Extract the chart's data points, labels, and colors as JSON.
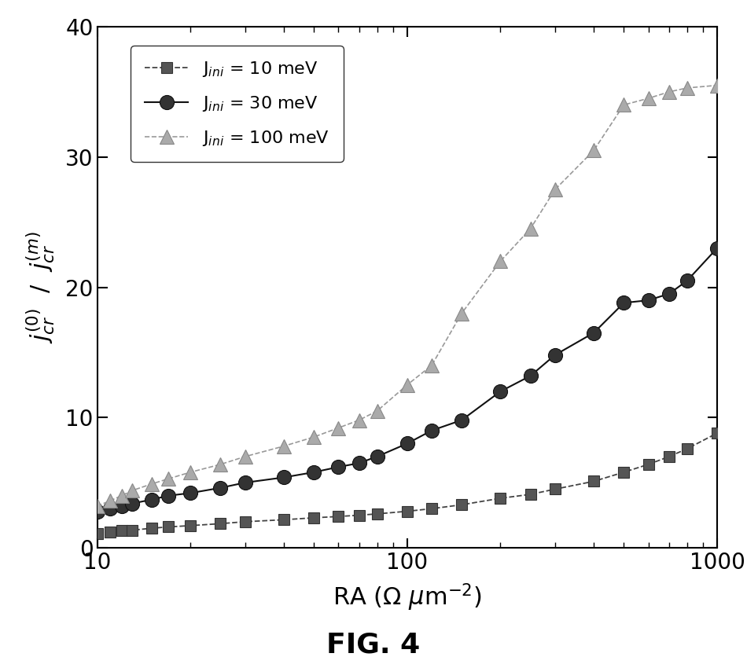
{
  "title": "FIG. 4",
  "xlabel": "RA ($\\Omega$ $\\mu$m$^{-2}$)",
  "ylabel_parts": [
    "$j$",
    "${(0)}$",
    "${cr}$",
    " / ",
    "$j$",
    "${(m)}$",
    "${cr}$"
  ],
  "xlim": [
    10,
    1000
  ],
  "ylim": [
    0,
    40
  ],
  "yticks": [
    0,
    10,
    20,
    30,
    40
  ],
  "series": [
    {
      "label": "J$_{\\mathit{ini}}$ = 10 meV",
      "color": "#555555",
      "linestyle": "--",
      "marker": "s",
      "markersize": 10,
      "linewidth": 1.2,
      "x": [
        10,
        11,
        12,
        13,
        15,
        17,
        20,
        25,
        30,
        40,
        50,
        60,
        70,
        80,
        100,
        120,
        150,
        200,
        250,
        300,
        400,
        500,
        600,
        700,
        800,
        1000
      ],
      "y": [
        1.1,
        1.2,
        1.3,
        1.35,
        1.5,
        1.6,
        1.7,
        1.85,
        2.0,
        2.15,
        2.3,
        2.4,
        2.5,
        2.6,
        2.8,
        3.0,
        3.3,
        3.8,
        4.1,
        4.5,
        5.1,
        5.8,
        6.4,
        7.0,
        7.6,
        8.8
      ]
    },
    {
      "label": "J$_{\\mathit{ini}}$ = 30 meV",
      "color": "#222222",
      "linestyle": "-",
      "marker": "o",
      "markersize": 12,
      "linewidth": 1.5,
      "x": [
        10,
        11,
        12,
        13,
        15,
        17,
        20,
        25,
        30,
        40,
        50,
        60,
        70,
        80,
        100,
        120,
        150,
        200,
        250,
        300,
        400,
        500,
        600,
        700,
        800,
        1000
      ],
      "y": [
        2.8,
        3.0,
        3.2,
        3.4,
        3.7,
        4.0,
        4.2,
        4.6,
        5.0,
        5.4,
        5.8,
        6.2,
        6.5,
        7.0,
        8.0,
        9.0,
        9.8,
        12.0,
        13.2,
        14.8,
        16.5,
        18.8,
        19.0,
        19.5,
        20.5,
        23.0
      ]
    },
    {
      "label": "J$_{\\mathit{ini}}$ = 100 meV",
      "color": "#aaaaaa",
      "linestyle": "--",
      "marker": "^",
      "markersize": 12,
      "linewidth": 1.2,
      "x": [
        10,
        11,
        12,
        13,
        15,
        17,
        20,
        25,
        30,
        40,
        50,
        60,
        70,
        80,
        100,
        120,
        150,
        200,
        250,
        300,
        400,
        500,
        600,
        700,
        800,
        1000
      ],
      "y": [
        3.2,
        3.6,
        4.0,
        4.4,
        4.9,
        5.3,
        5.8,
        6.4,
        7.0,
        7.8,
        8.5,
        9.2,
        9.8,
        10.5,
        12.5,
        14.0,
        18.0,
        22.0,
        24.5,
        27.5,
        30.5,
        34.0,
        34.5,
        35.0,
        35.3,
        35.5
      ]
    }
  ]
}
